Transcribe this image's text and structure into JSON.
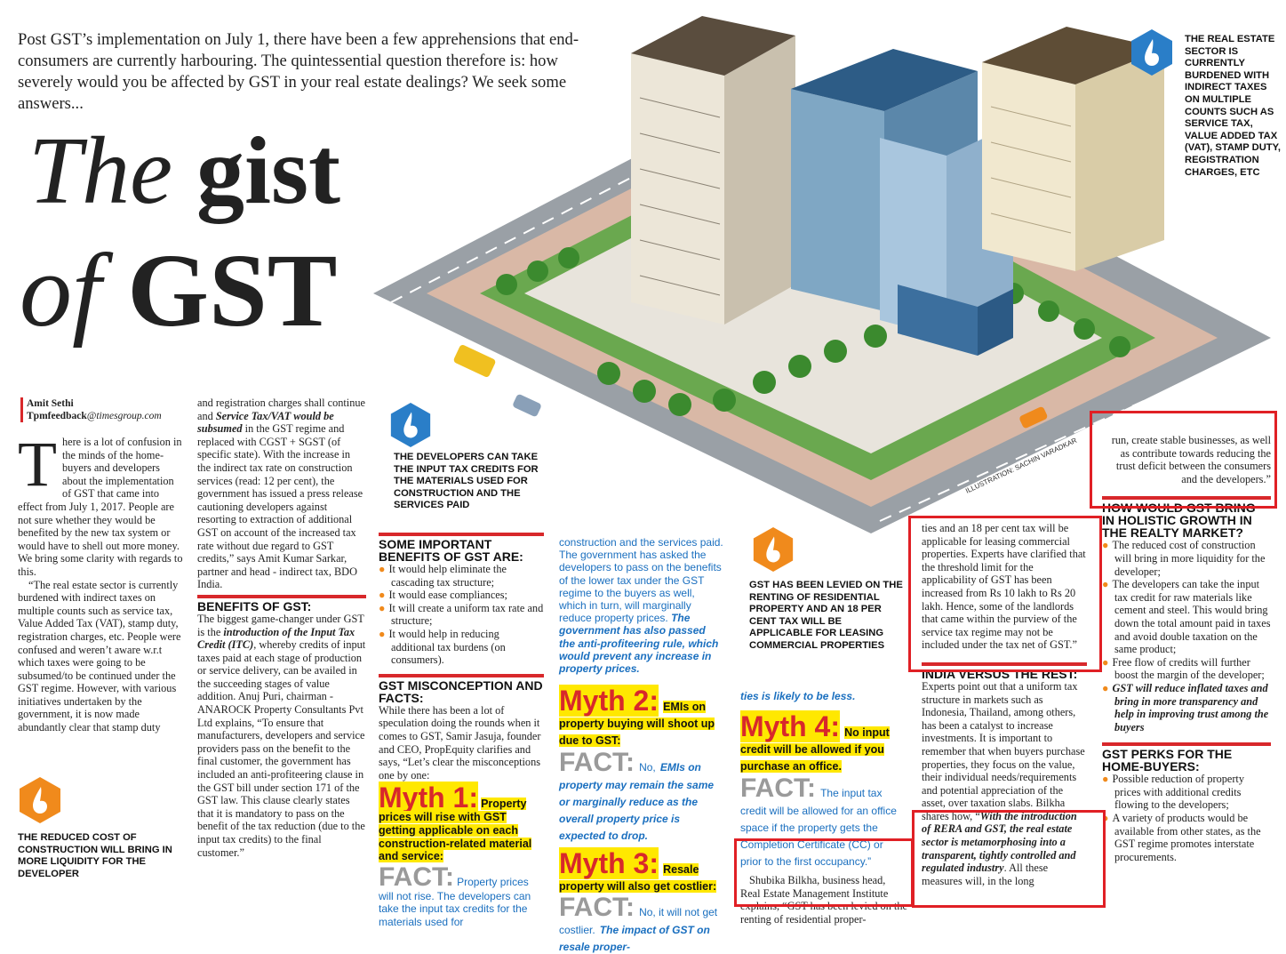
{
  "intro": "Post GST’s implementation on July 1, there have been a few apprehensions that end-consumers are currently harbouring. The quintessential question therefore is: how severely would you be affected by GST in your real estate dealings? We seek some answers...",
  "title": {
    "the": "The",
    "gist": "gist",
    "of": "of",
    "gst": "GST"
  },
  "byline": {
    "author": "Amit Sethi",
    "feedback_label": "Tpmfeedback",
    "email": "@timesgroup.com"
  },
  "illustration": {
    "credit": "ILLUSTRATION: SACHIN VARADKAR",
    "letters": [
      "G",
      "S",
      "T"
    ]
  },
  "notes": {
    "top_right": "THE REAL ESTATE SECTOR IS CURRENTLY BURDENED WITH INDIRECT TAXES ON MULTIPLE COUNTS SUCH AS SERVICE TAX, VALUE ADDED TAX (VAT), STAMP DUTY, REGISTRATION CHARGES, ETC",
    "developers": "THE DEVELOPERS CAN TAKE THE INPUT TAX CREDITS FOR THE MATERIALS USED FOR CONSTRUCTION AND THE SERVICES PAID",
    "leasing": "GST HAS BEEN LEVIED ON THE RENTING OF RESIDENTIAL PROPERTY AND AN 18 PER CENT TAX WILL BE APPLICABLE FOR LEASING COMMERCIAL PROPERTIES",
    "liquidity": "THE REDUCED COST OF CONSTRUCTION WILL BRING IN MORE LIQUIDITY FOR THE DEVELOPER"
  },
  "col1": {
    "drop_cap": "T",
    "p1_lead": "here is a lot of confusion in the minds of the home-buyers and developers about the implementation of GST that came into effect from July 1, 2017. People are not sure whether they would be benefited by the new tax system or would have to shell out more money. We bring some clarity with regards to this.",
    "p2": "“The real estate sector is currently burdened with indirect taxes on multiple counts such as service tax, Value Added Tax (VAT), stamp duty, registration charges, etc. People were confused and weren’t aware w.r.t which taxes were going to be subsumed/to be continued under the GST regime. However, with various initiatives undertaken by the government, it is now made abundantly clear that stamp duty"
  },
  "col2": {
    "p1a": "and registration charges shall continue and ",
    "p1b": "Service Tax/VAT would be subsumed",
    "p1c": " in the GST regime and replaced with CGST + SGST (of specific state). With the increase in the indirect tax rate on construction services (read: 12 per cent), the government has issued a press release cautioning developers against resorting to extraction of additional GST on account of the increased tax rate without due regard to GST credits,” says Amit Kumar Sarkar, partner and head - indirect tax, BDO India.",
    "heading": "BENEFITS OF GST:",
    "p2a": "The biggest game-changer under GST is the ",
    "p2b": "introduction of the Input Tax Credit (ITC)",
    "p2c": ", whereby credits of input taxes paid at each stage of production or service delivery, can be availed in the succeeding stages of value addition. Anuj Puri, chairman - ANAROCK Property Consultants Pvt Ltd explains, “To ensure that manufacturers, developers and service providers pass on the benefit to the final customer, the government has included an anti-profiteering clause in the GST bill under section 171 of the GST law. This clause clearly states that it is mandatory to pass on the benefit of the tax reduction (due to the input tax credits) to the final customer.”"
  },
  "col3": {
    "heading": "SOME IMPORTANT BENEFITS OF GST ARE:",
    "bullets": [
      "It would help eliminate the cascading tax structure;",
      "It would ease compliances;",
      "It will create a uniform tax rate and structure;",
      "It would help in reducing additional tax burdens (on consumers)."
    ],
    "heading2": "GST MISCONCEPTION AND FACTS:",
    "p": "While there has been a lot of speculation doing the rounds when it comes to GST, Samir Jasuja, founder and CEO, PropEquity clarifies and says, “Let’s clear the misconceptions one by one:",
    "myth1_big": "Myth 1:",
    "myth1_small": "Property prices will rise with GST getting applicable on each construction-related material and service:",
    "fact_word": "FACT:",
    "fact1": "Property prices will not rise. The developers can take the input tax credits for the materials used for"
  },
  "col4": {
    "p1": "construction and the services paid. The government has asked the developers to pass on the benefits of the lower tax under the GST regime to the buyers as well, which in turn, will marginally reduce property prices.",
    "p1_bold": "The government has also passed the anti-profiteering rule, which would prevent any increase in property prices.",
    "myth2_big": "Myth 2:",
    "myth2_small": "EMIs on property buying will shoot up due to GST:",
    "fact2a": "No,",
    "fact2b": "EMIs on property may remain the same or marginally reduce as the overall property price is expected to drop.",
    "myth3_big": "Myth 3:",
    "myth3_small": "Resale property will also get costlier:",
    "fact3a": "No, it will not get costlier.",
    "fact3b": "The impact of GST on resale proper-"
  },
  "col5": {
    "top": "ties is likely to be less.",
    "myth4_big": "Myth 4:",
    "myth4_small": "No input credit will be allowed if you purchase an office.",
    "fact4": "The input tax credit will be allowed for an office space if the property gets the Completion Certificate (CC) or prior to the first occupancy.”",
    "p": "Shubika Bilkha, business head, Real Estate Management Institute explains, “GST has been levied on the renting of residential proper-"
  },
  "col6": {
    "p1": "ties and an 18 per cent tax will be applicable for leasing commercial properties. Experts have clarified that the threshold limit for the applicability of GST has been increased from Rs 10 lakh to Rs 20 lakh. Hence, some of the landlords that came within the purview of the service tax regime may not be included under the tax net of GST.”",
    "heading": "INDIA VERSUS THE REST:",
    "p2": "Experts point out that a uniform tax structure in markets such as Indonesia, Thailand, among others, has been a catalyst to increase investments. It is important to remember that when buyers purchase properties, they focus on the value, their individual needs/requirements and potential appreciation of the asset, over taxation slabs. Bilkha shares how, “",
    "p2_bold": "With the introduction of RERA and GST, the real estate sector is metamorphosing into a transparent, tightly controlled and regulated industry",
    "p2_end": ". All these measures will, in the long"
  },
  "col7": {
    "p1": "run, create stable businesses, as well as contribute towards reducing the trust deficit between the consumers and the developers.”",
    "heading": "HOW WOULD GST BRING IN HOLISTIC GROWTH IN THE REALTY MARKET?",
    "bullets": [
      "The reduced cost of construction will bring in more liquidity for the developer;",
      "The developers can take the input tax credit for raw materials like cement and steel. This would bring down the total amount paid in taxes and avoid double taxation on the same product;",
      "Free flow of credits will further boost the margin of the developer;"
    ],
    "bullet_bold": "GST will reduce inflated taxes and bring in more transparency and help in improving trust among the buyers",
    "heading2": "GST PERKS FOR THE HOME-BUYERS:",
    "bullets2": [
      "Possible reduction of property prices with additional credits flowing to the developers;",
      "A variety of products would be available from other states, as the GST regime promotes interstate procurements."
    ]
  },
  "colors": {
    "accent_red": "#d8282b",
    "orange": "#f08a1c",
    "blue_text": "#1a6fbf",
    "highlight_yellow": "#ffe800",
    "box_red": "#e02025"
  }
}
